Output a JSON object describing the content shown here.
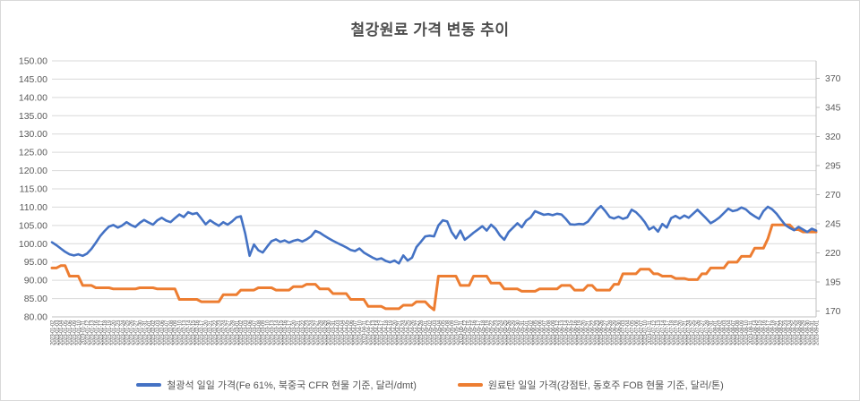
{
  "title": "철강원료 가격 변동 추이",
  "colors": {
    "iron_ore": "#4472C4",
    "coking_coal": "#ED7D31",
    "grid": "#D9D9D9",
    "axis": "#BFBFBF",
    "tick_text": "#595959",
    "title_text": "#4D4D4D",
    "frame_border": "#D9D9D9"
  },
  "legend": {
    "items": [
      {
        "label": "철광석 일일 가격(Fe 61%, 북중국 CFR 현물 기준, 달러/dmt)",
        "color": "#4472C4"
      },
      {
        "label": "원료탄 일일 가격(강점탄, 동호주 FOB 현물 기준, 달러/톤)",
        "color": "#ED7D31"
      }
    ]
  },
  "chart_data": {
    "type": "line",
    "title": "철강원료 가격 변동 추이",
    "grid": true,
    "legend_position": "bottom",
    "x_label_rotation": -90,
    "y_left": {
      "ticks": [
        "150.00",
        "145.00",
        "140.00",
        "135.00",
        "130.00",
        "125.00",
        "120.00",
        "115.00",
        "110.00",
        "105.00",
        "100.00",
        "95.00",
        "90.00",
        "85.00",
        "80.00"
      ],
      "axis_min": 80,
      "axis_max": 150
    },
    "y_right": {
      "ticks": [
        "370",
        "345",
        "320",
        "295",
        "270",
        "245",
        "220",
        "195",
        "170"
      ],
      "axis_min": 165,
      "axis_max": 385
    },
    "categories": [
      "2023-01-02",
      "2023-01-03",
      "2023-01-04",
      "2023-01-05",
      "2023-01-06",
      "2023-01-09",
      "2023-01-10",
      "2023-01-11",
      "2023-01-12",
      "2023-01-13",
      "2023-01-16",
      "2023-01-17",
      "2023-01-18",
      "2023-01-19",
      "2023-01-20",
      "2023-01-23",
      "2023-01-24",
      "2023-01-25",
      "2023-01-26",
      "2023-01-27",
      "2023-01-30",
      "2023-01-31",
      "2023-02-01",
      "2023-02-02",
      "2023-02-03",
      "2023-02-06",
      "2023-02-07",
      "2023-02-08",
      "2023-02-09",
      "2023-02-10",
      "2023-02-13",
      "2023-02-14",
      "2023-02-15",
      "2023-02-16",
      "2023-02-17",
      "2023-02-20",
      "2023-02-21",
      "2023-02-22",
      "2023-02-23",
      "2023-02-24",
      "2023-02-27",
      "2023-02-28",
      "2023-03-01",
      "2023-03-02",
      "2023-03-03",
      "2023-03-06",
      "2023-03-07",
      "2023-03-08",
      "2023-03-09",
      "2023-03-10",
      "2023-03-13",
      "2023-03-14",
      "2023-03-15",
      "2023-03-16",
      "2023-03-17",
      "2023-03-20",
      "2023-03-21",
      "2023-03-22",
      "2023-03-23",
      "2023-03-24",
      "2023-03-27",
      "2023-03-28",
      "2023-03-29",
      "2023-03-30",
      "2023-03-31",
      "2023-04-03",
      "2023-04-04",
      "2023-04-05",
      "2023-04-06",
      "2023-04-07",
      "2023-04-10",
      "2023-04-11",
      "2023-04-12",
      "2023-04-13",
      "2023-04-14",
      "2023-04-17",
      "2023-04-18",
      "2023-04-19",
      "2023-04-20",
      "2023-04-21",
      "2023-04-24",
      "2023-04-25",
      "2023-04-26",
      "2023-04-27",
      "2023-04-28",
      "2023-05-01",
      "2023-05-02",
      "2023-05-03",
      "2023-05-04",
      "2023-05-05",
      "2023-05-08",
      "2023-05-09",
      "2023-05-10",
      "2023-05-11",
      "2023-05-12",
      "2023-05-15",
      "2023-05-16",
      "2023-05-17",
      "2023-05-18",
      "2023-05-19",
      "2023-05-22",
      "2023-05-23",
      "2023-05-24",
      "2023-05-25",
      "2023-05-26",
      "2023-05-29",
      "2023-05-30",
      "2023-05-31",
      "2023-06-01",
      "2023-06-02",
      "2023-06-05",
      "2023-06-06",
      "2023-06-07",
      "2023-06-08",
      "2023-06-09",
      "2023-06-12",
      "2023-06-13",
      "2023-06-14",
      "2023-06-15",
      "2023-06-16",
      "2023-06-19",
      "2023-06-20",
      "2023-06-21",
      "2023-06-22",
      "2023-06-23",
      "2023-06-26",
      "2023-06-27",
      "2023-06-28",
      "2023-06-29",
      "2023-06-30",
      "2023-07-03",
      "2023-07-04",
      "2023-07-05",
      "2023-07-06",
      "2023-07-07",
      "2023-07-10",
      "2023-07-11",
      "2023-07-12",
      "2023-07-13",
      "2023-07-14",
      "2023-07-17",
      "2023-07-18",
      "2023-07-19",
      "2023-07-20",
      "2023-07-21",
      "2023-07-24",
      "2023-07-25",
      "2023-07-26",
      "2023-07-27",
      "2023-07-28",
      "2023-07-31",
      "2023-08-01",
      "2023-08-02",
      "2023-08-03",
      "2023-08-04",
      "2023-08-07",
      "2023-08-08",
      "2023-08-09",
      "2023-08-10",
      "2023-08-11",
      "2023-08-14",
      "2023-08-15",
      "2023-08-16",
      "2023-08-17",
      "2023-08-18",
      "2023-08-21",
      "2023-08-22",
      "2023-08-23",
      "2023-08-24",
      "2023-08-25",
      "2023-08-28",
      "2023-08-29",
      "2023-08-30",
      "2023-08-31",
      "2023-09-01"
    ],
    "series": [
      {
        "name": "철광석 일일 가격(Fe 61%, 북중국 CFR 현물 기준, 달러/dmt)",
        "axis": "left",
        "unit": "달러/dmt",
        "color": "#4472C4",
        "values": [
          100.4,
          99.6,
          98.7,
          97.8,
          97.1,
          96.8,
          97.1,
          96.7,
          97.3,
          98.6,
          100.3,
          102.1,
          103.5,
          104.7,
          105.1,
          104.4,
          105.0,
          105.9,
          105.1,
          104.6,
          105.7,
          106.5,
          105.8,
          105.2,
          106.4,
          107.1,
          106.3,
          105.9,
          107.0,
          108.0,
          107.3,
          108.6,
          108.1,
          108.4,
          106.9,
          105.3,
          106.4,
          105.6,
          104.9,
          105.9,
          105.2,
          106.1,
          107.2,
          107.5,
          102.8,
          96.7,
          99.8,
          98.2,
          97.6,
          99.2,
          100.7,
          101.2,
          100.5,
          100.9,
          100.3,
          100.8,
          101.1,
          100.6,
          101.2,
          102.0,
          103.5,
          103.0,
          102.2,
          101.5,
          100.8,
          100.2,
          99.6,
          99.0,
          98.3,
          98.0,
          98.7,
          97.6,
          96.9,
          96.2,
          95.7,
          96.0,
          95.3,
          94.9,
          95.4,
          94.6,
          96.8,
          95.4,
          96.2,
          99.1,
          100.5,
          102.0,
          102.2,
          102.0,
          105.0,
          106.4,
          106.1,
          103.2,
          101.5,
          103.6,
          101.1,
          102.0,
          103.0,
          103.9,
          104.8,
          103.6,
          105.2,
          104.1,
          102.3,
          101.1,
          103.2,
          104.4,
          105.6,
          104.5,
          106.3,
          107.2,
          108.9,
          108.4,
          107.9,
          108.1,
          107.8,
          108.2,
          108.0,
          106.8,
          105.3,
          105.2,
          105.4,
          105.3,
          106.0,
          107.5,
          109.2,
          110.3,
          108.9,
          107.3,
          106.9,
          107.4,
          106.8,
          107.2,
          109.3,
          108.6,
          107.4,
          105.9,
          103.9,
          104.6,
          103.3,
          105.4,
          104.4,
          107.0,
          107.6,
          106.9,
          107.7,
          107.1,
          108.2,
          109.3,
          108.1,
          106.9,
          105.6,
          106.3,
          107.2,
          108.4,
          109.6,
          108.9,
          109.2,
          109.9,
          109.4,
          108.3,
          107.5,
          106.8,
          108.9,
          110.1,
          109.4,
          108.2,
          106.6,
          105.1,
          104.3,
          103.7,
          104.6,
          103.9,
          103.2,
          104.1,
          103.6
        ]
      },
      {
        "name": "원료탄 일일 가격(강점탄, 동호주 FOB 현물 기준, 달러/톤)",
        "axis": "right",
        "unit": "달러/톤",
        "color": "#ED7D31",
        "values": [
          207,
          207,
          209,
          209,
          200,
          200,
          200,
          192,
          192,
          192,
          190,
          190,
          190,
          190,
          189,
          189,
          189,
          189,
          189,
          189,
          190,
          190,
          190,
          190,
          189,
          189,
          189,
          189,
          189,
          180,
          180,
          180,
          180,
          180,
          178,
          178,
          178,
          178,
          178,
          184,
          184,
          184,
          184,
          188,
          188,
          188,
          188,
          190,
          190,
          190,
          190,
          188,
          188,
          188,
          188,
          191,
          191,
          191,
          193,
          193,
          193,
          189,
          189,
          189,
          185,
          185,
          185,
          185,
          180,
          180,
          180,
          180,
          174,
          174,
          174,
          174,
          172,
          172,
          172,
          172,
          175,
          175,
          175,
          178,
          178,
          178,
          174,
          171,
          200,
          200,
          200,
          200,
          200,
          192,
          192,
          192,
          200,
          200,
          200,
          200,
          194,
          194,
          194,
          189,
          189,
          189,
          189,
          187,
          187,
          187,
          187,
          189,
          189,
          189,
          189,
          189,
          192,
          192,
          192,
          188,
          188,
          188,
          192,
          192,
          188,
          188,
          188,
          188,
          193,
          193,
          202,
          202,
          202,
          202,
          206,
          206,
          206,
          202,
          202,
          200,
          200,
          200,
          198,
          198,
          198,
          197,
          197,
          197,
          202,
          202,
          207,
          207,
          207,
          207,
          212,
          212,
          212,
          217,
          217,
          217,
          224,
          224,
          224,
          232,
          244,
          244,
          244,
          244,
          244,
          240,
          240,
          238,
          238,
          238,
          238
        ]
      }
    ]
  }
}
